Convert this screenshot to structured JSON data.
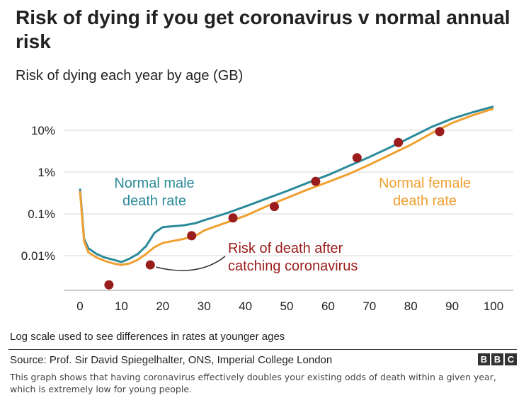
{
  "header": {
    "title": "Risk of dying if you get coronavirus v normal annual risk",
    "subtitle": "Risk of dying each year by age (GB)"
  },
  "footer": {
    "note": "Log scale used to see differences in rates at younger ages",
    "source": "Source: Prof. Sir David Spiegelhalter, ONS, Imperial College London",
    "brand": [
      "B",
      "B",
      "C"
    ],
    "caption": "This graph shows that having coronavirus effectively doubles your existing odds of death within a given year, which is extremely low for young people."
  },
  "colors": {
    "male": "#2b8a9a",
    "female": "#f0a030",
    "covid": "#9b1c1c",
    "grid": "#d6d6d6",
    "text": "#222222"
  },
  "chart_data": {
    "type": "line",
    "title": "Risk of dying if you get coronavirus v normal annual risk",
    "subtitle": "Risk of dying each year by age (GB)",
    "x_scale": "linear",
    "y_scale": "log",
    "xlim": [
      0,
      100
    ],
    "ylim_percent": [
      0.001,
      50
    ],
    "x_ticks": [
      0,
      10,
      20,
      30,
      40,
      50,
      60,
      70,
      80,
      90,
      100
    ],
    "y_ticks": [
      {
        "value": 10,
        "label": "10%"
      },
      {
        "value": 1,
        "label": "1%"
      },
      {
        "value": 0.1,
        "label": "0.1%"
      },
      {
        "value": 0.01,
        "label": "0.01%"
      }
    ],
    "grid": "horizontal",
    "series": [
      {
        "name": "Normal male death rate",
        "color": "#2b8a9a",
        "x": [
          0,
          1,
          2,
          4,
          6,
          8,
          10,
          12,
          14,
          16,
          18,
          20,
          22,
          25,
          28,
          30,
          35,
          40,
          45,
          50,
          55,
          60,
          65,
          70,
          75,
          80,
          85,
          90,
          95,
          100
        ],
        "y": [
          0.4,
          0.025,
          0.015,
          0.011,
          0.009,
          0.008,
          0.007,
          0.0085,
          0.011,
          0.017,
          0.035,
          0.048,
          0.05,
          0.053,
          0.06,
          0.07,
          0.1,
          0.15,
          0.23,
          0.35,
          0.55,
          0.85,
          1.4,
          2.3,
          3.9,
          6.8,
          12,
          19,
          27,
          37
        ]
      },
      {
        "name": "Normal female death rate",
        "color": "#f0a030",
        "x": [
          0,
          1,
          2,
          4,
          6,
          8,
          10,
          12,
          14,
          16,
          18,
          20,
          22,
          25,
          28,
          30,
          35,
          40,
          45,
          50,
          55,
          60,
          65,
          70,
          75,
          80,
          85,
          90,
          95,
          100
        ],
        "y": [
          0.35,
          0.022,
          0.012,
          0.009,
          0.0075,
          0.0065,
          0.006,
          0.0065,
          0.008,
          0.011,
          0.016,
          0.02,
          0.022,
          0.025,
          0.03,
          0.04,
          0.06,
          0.09,
          0.15,
          0.24,
          0.38,
          0.58,
          0.9,
          1.5,
          2.6,
          4.5,
          8.5,
          15,
          23,
          33
        ]
      },
      {
        "name": "Risk of death after catching coronavirus",
        "type": "scatter",
        "color": "#9b1c1c",
        "x": [
          7,
          17,
          27,
          37,
          47,
          57,
          67,
          77,
          87
        ],
        "y": [
          0.002,
          0.006,
          0.03,
          0.08,
          0.15,
          0.6,
          2.2,
          5.1,
          9.3
        ]
      }
    ],
    "annotations": [
      {
        "text": [
          "Normal male",
          "death rate"
        ],
        "color": "#2b8a9a"
      },
      {
        "text": [
          "Normal female",
          "death rate"
        ],
        "color": "#f0a030"
      },
      {
        "text": [
          "Risk of death after",
          "catching coronavirus"
        ],
        "color": "#9b1c1c"
      }
    ]
  }
}
